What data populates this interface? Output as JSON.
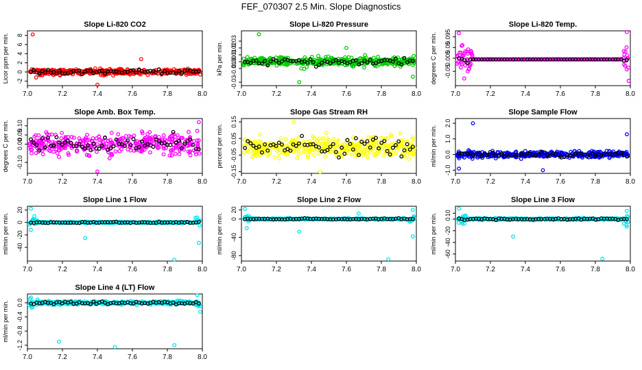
{
  "title": "FEF_070307  2.5 Min. Slope Diagnostics",
  "colors": {
    "red": "#ff0000",
    "green": "#00cc00",
    "magenta": "#ff00ff",
    "yellow": "#ffff00",
    "blue": "#0000ff",
    "cyan": "#00e5ee",
    "black": "#000000"
  },
  "chart_data": [
    {
      "type": "scatter",
      "title": "Slope Li-820 CO2",
      "ylabel": "Licor ppm per min.",
      "xlabel": "",
      "xlim": [
        7.0,
        8.0
      ],
      "ylim": [
        -3,
        9
      ],
      "xticks": [
        "7.0",
        "7.2",
        "7.4",
        "7.6",
        "7.8",
        "8.0"
      ],
      "yticks": [
        "-2",
        "0",
        "2",
        "4",
        "6",
        "8"
      ],
      "color": "red",
      "base": 0,
      "spread": 0.8,
      "outliers": [
        [
          7.03,
          8.2
        ],
        [
          7.4,
          -2.8
        ],
        [
          7.65,
          2.8
        ],
        [
          7.05,
          -1.2
        ]
      ]
    },
    {
      "type": "scatter",
      "title": "Slope Li-820 Pressure",
      "ylabel": "kPa per min.",
      "xlabel": "",
      "xlim": [
        7.0,
        8.0
      ],
      "ylim": [
        -0.035,
        0.045
      ],
      "xticks": [
        "7.0",
        "7.2",
        "7.4",
        "7.6",
        "7.8",
        "8.0"
      ],
      "yticks": [
        "-0.03",
        "-0.01",
        "0.00",
        "0.01",
        "0.02",
        "0.03"
      ],
      "color": "green",
      "base": 0,
      "spread": 0.008,
      "outliers": [
        [
          7.1,
          0.04
        ],
        [
          7.33,
          -0.03
        ],
        [
          7.98,
          -0.022
        ],
        [
          7.6,
          0.02
        ]
      ]
    },
    {
      "type": "scatter",
      "title": "Slope Li-820 Temp.",
      "ylabel": "degrees C per min.",
      "xlabel": "",
      "xlim": [
        7.0,
        8.0
      ],
      "ylim": [
        -0.11,
        0.12
      ],
      "xticks": [
        "7.0",
        "7.2",
        "7.4",
        "7.6",
        "7.8",
        "8.0"
      ],
      "yticks": [
        "-0.05",
        "0.005",
        "0.05",
        "0.095"
      ],
      "color": "magenta",
      "base": 0,
      "spread": 0.002,
      "outliers": [
        [
          7.02,
          0.11
        ],
        [
          7.05,
          -0.08
        ],
        [
          7.98,
          0.115
        ],
        [
          7.99,
          -0.09
        ],
        [
          7.04,
          0.06
        ],
        [
          7.07,
          -0.05
        ]
      ]
    },
    {
      "type": "scatter",
      "title": "Slope Amb. Box Temp.",
      "ylabel": "degrees C per min.",
      "xlabel": "",
      "xlim": [
        7.0,
        8.0
      ],
      "ylim": [
        -0.16,
        0.14
      ],
      "xticks": [
        "7.0",
        "7.2",
        "7.4",
        "7.6",
        "7.8",
        "8.0"
      ],
      "yticks": [
        "-0.10",
        "0.00",
        "0.05",
        "0.10"
      ],
      "color": "magenta",
      "base": 0,
      "spread": 0.07,
      "outliers": [
        [
          7.4,
          -0.15
        ],
        [
          7.98,
          0.12
        ]
      ]
    },
    {
      "type": "scatter",
      "title": "Slope Gas Stream RH",
      "ylabel": "percent per min.",
      "xlabel": "",
      "xlim": [
        7.0,
        8.0
      ],
      "ylim": [
        -0.16,
        0.17
      ],
      "xticks": [
        "7.0",
        "7.2",
        "7.4",
        "7.6",
        "7.8",
        "8.0"
      ],
      "yticks": [
        "-0.15",
        "-0.05",
        "0.05",
        "0.15"
      ],
      "color": "yellow",
      "base": 0,
      "spread": 0.08,
      "outliers": [
        [
          7.3,
          0.15
        ],
        [
          7.45,
          -0.15
        ]
      ]
    },
    {
      "type": "scatter",
      "title": "Slope Sample Flow",
      "ylabel": "ml/min per min.",
      "xlabel": "",
      "xlim": [
        7.0,
        8.0
      ],
      "ylim": [
        -1.2,
        2.3
      ],
      "xticks": [
        "7.0",
        "7.2",
        "7.4",
        "7.6",
        "7.8",
        "8.0"
      ],
      "yticks": [
        "-1.0",
        "0.0",
        "1.0",
        "2.0"
      ],
      "color": "blue",
      "base": 0,
      "spread": 0.25,
      "outliers": [
        [
          7.1,
          2.0
        ],
        [
          7.5,
          -1.0
        ],
        [
          7.98,
          1.3
        ],
        [
          7.02,
          -0.9
        ]
      ]
    },
    {
      "type": "scatter",
      "title": "Slope Line 1 Flow",
      "ylabel": "ml/min per min.",
      "xlabel": "",
      "xlim": [
        7.0,
        8.0
      ],
      "ylim": [
        -62,
        26
      ],
      "xticks": [
        "7.0",
        "7.2",
        "7.4",
        "7.6",
        "7.8",
        "8.0"
      ],
      "yticks": [
        "-40",
        "-20",
        "0",
        "20"
      ],
      "color": "cyan",
      "base": 0,
      "spread": 1.5,
      "outliers": [
        [
          7.02,
          22
        ],
        [
          7.33,
          -25
        ],
        [
          7.84,
          -60
        ],
        [
          7.98,
          -33
        ],
        [
          7.02,
          -12
        ],
        [
          7.04,
          10
        ],
        [
          7.97,
          8
        ]
      ]
    },
    {
      "type": "scatter",
      "title": "Slope Line 2 Flow",
      "ylabel": "ml/min per min.",
      "xlabel": "",
      "xlim": [
        7.0,
        8.0
      ],
      "ylim": [
        -92,
        28
      ],
      "xticks": [
        "7.0",
        "7.2",
        "7.4",
        "7.6",
        "7.8",
        "8.0"
      ],
      "yticks": [
        "-80",
        "-40",
        "0",
        "20"
      ],
      "color": "cyan",
      "base": 0,
      "spread": 2,
      "outliers": [
        [
          7.02,
          22
        ],
        [
          7.33,
          -28
        ],
        [
          7.84,
          -88
        ],
        [
          7.98,
          -38
        ],
        [
          7.67,
          12
        ],
        [
          7.03,
          -20
        ],
        [
          7.98,
          20
        ]
      ]
    },
    {
      "type": "scatter",
      "title": "Slope Line 3 Flow",
      "ylabel": "ml/min per min.",
      "xlabel": "",
      "xlim": [
        7.0,
        8.0
      ],
      "ylim": [
        -72,
        22
      ],
      "xticks": [
        "7.0",
        "7.2",
        "7.4",
        "7.6",
        "7.8",
        "8.0"
      ],
      "yticks": [
        "-60",
        "-40",
        "-20",
        "0",
        "10"
      ],
      "color": "cyan",
      "base": 0,
      "spread": 2,
      "outliers": [
        [
          7.02,
          18
        ],
        [
          7.33,
          -30
        ],
        [
          7.84,
          -68
        ],
        [
          7.98,
          -13
        ],
        [
          7.04,
          -8
        ],
        [
          7.98,
          14
        ]
      ]
    },
    {
      "type": "scatter",
      "title": "Slope Line 4 (LT) Flow",
      "ylabel": "ml/min per min.",
      "xlabel": "",
      "xlim": [
        7.0,
        8.0
      ],
      "ylim": [
        -1.3,
        0.25
      ],
      "xticks": [
        "7.0",
        "7.2",
        "7.4",
        "7.6",
        "7.8",
        "8.0"
      ],
      "yticks": [
        "-1.2",
        "-0.8",
        "-0.4",
        "0.0"
      ],
      "color": "cyan",
      "base": 0,
      "spread": 0.06,
      "outliers": [
        [
          7.18,
          -1.1
        ],
        [
          7.5,
          -1.25
        ],
        [
          7.84,
          -1.2
        ],
        [
          7.02,
          0.15
        ]
      ]
    }
  ]
}
